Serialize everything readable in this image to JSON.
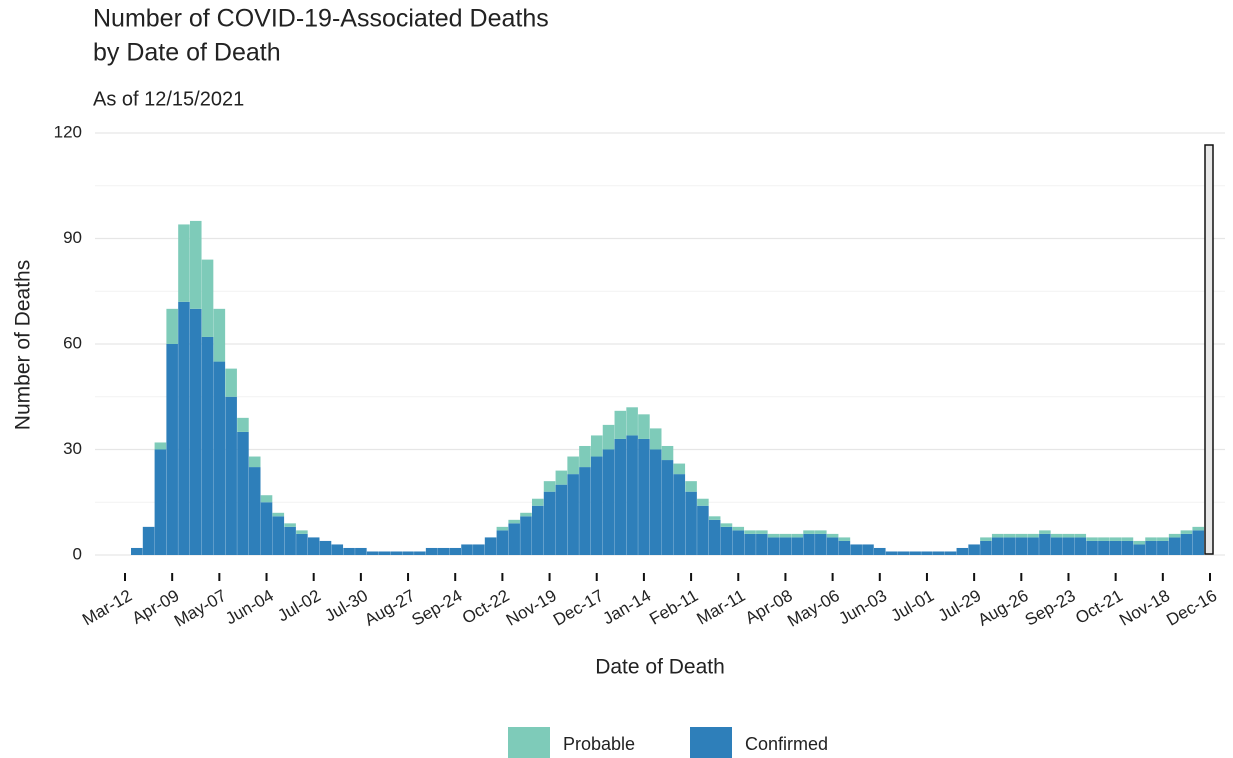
{
  "chart_data": {
    "type": "stacked-bar",
    "title": [
      "Number of COVID-19-Associated Deaths",
      "by Date of Death"
    ],
    "subtitle": "As of 12/15/2021",
    "x_label": "Date of Death",
    "y_label": "Number of Deaths",
    "categories": [
      "Mar-12",
      null,
      null,
      null,
      "Apr-09",
      null,
      null,
      null,
      "May-07",
      null,
      null,
      null,
      "Jun-04",
      null,
      null,
      null,
      "Jul-02",
      null,
      null,
      null,
      "Jul-30",
      null,
      null,
      null,
      "Aug-27",
      null,
      null,
      null,
      "Sep-24",
      null,
      null,
      null,
      "Oct-22",
      null,
      null,
      null,
      "Nov-19",
      null,
      null,
      null,
      "Dec-17",
      null,
      null,
      null,
      "Jan-14",
      null,
      null,
      null,
      "Feb-11",
      null,
      null,
      null,
      "Mar-11",
      null,
      null,
      null,
      "Apr-08",
      null,
      null,
      null,
      "May-06",
      null,
      null,
      null,
      "Jun-03",
      null,
      null,
      null,
      "Jul-01",
      null,
      null,
      null,
      "Jul-29",
      null,
      null,
      null,
      "Aug-26",
      null,
      null,
      null,
      "Sep-23",
      null,
      null,
      null,
      "Oct-21",
      null,
      null,
      null,
      "Nov-18",
      null,
      null,
      null,
      "Dec-16"
    ],
    "series": [
      {
        "name": "Probable",
        "color": "#7ecbb9",
        "values": [
          0,
          0,
          0,
          2,
          10,
          22,
          25,
          22,
          15,
          8,
          4,
          3,
          2,
          1,
          1,
          1,
          0,
          0,
          0,
          0,
          0,
          0,
          0,
          0,
          0,
          0,
          0,
          0,
          0,
          0,
          0,
          0,
          1,
          1,
          1,
          2,
          3,
          4,
          5,
          6,
          6,
          7,
          8,
          8,
          7,
          6,
          4,
          3,
          3,
          2,
          1,
          1,
          1,
          1,
          1,
          1,
          1,
          1,
          1,
          1,
          1,
          1,
          0,
          0,
          0,
          0,
          0,
          0,
          0,
          0,
          0,
          0,
          0,
          1,
          1,
          1,
          1,
          1,
          1,
          1,
          1,
          1,
          1,
          1,
          1,
          1,
          1,
          1,
          1,
          1,
          1,
          1,
          0
        ]
      },
      {
        "name": "Confirmed",
        "color": "#2e7fba",
        "values": [
          0,
          2,
          8,
          30,
          60,
          72,
          70,
          62,
          55,
          45,
          35,
          25,
          15,
          11,
          8,
          6,
          5,
          4,
          3,
          2,
          2,
          1,
          1,
          1,
          1,
          1,
          2,
          2,
          2,
          3,
          3,
          5,
          7,
          9,
          11,
          14,
          18,
          20,
          23,
          25,
          28,
          30,
          33,
          34,
          33,
          30,
          27,
          23,
          18,
          14,
          10,
          8,
          7,
          6,
          6,
          5,
          5,
          5,
          6,
          6,
          5,
          4,
          3,
          3,
          2,
          1,
          1,
          1,
          1,
          1,
          1,
          2,
          3,
          4,
          5,
          5,
          5,
          5,
          6,
          5,
          5,
          5,
          4,
          4,
          4,
          4,
          3,
          4,
          4,
          5,
          6,
          7,
          0
        ]
      }
    ],
    "ylim": [
      0,
      120
    ],
    "yticks": [
      0,
      30,
      60,
      90,
      120
    ],
    "yminor": [
      15,
      45,
      75,
      105
    ],
    "grid": true,
    "legend": "bottom"
  }
}
